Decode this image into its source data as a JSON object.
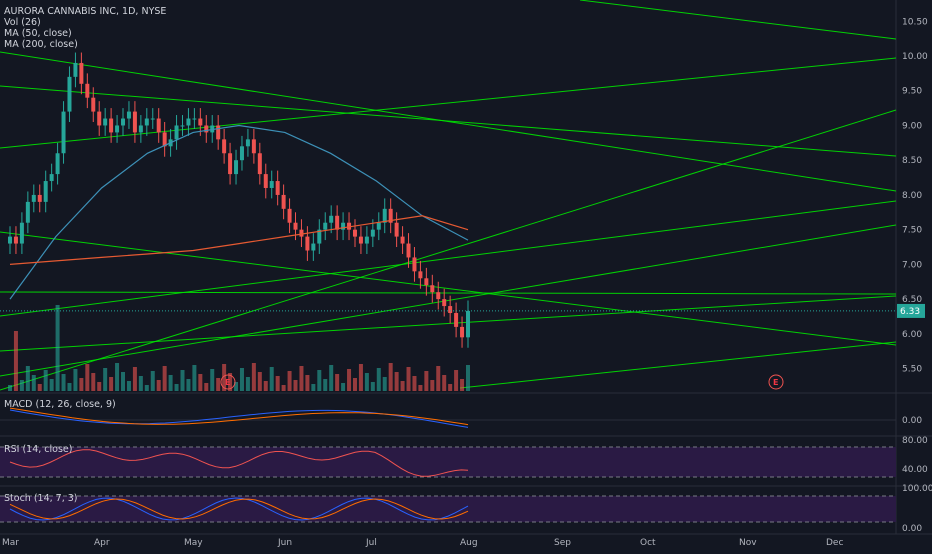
{
  "chart_data": {
    "type": "candlestick",
    "symbol_title": "AURORA CANNABIS INC, 1D, NYSE",
    "indicators": [
      "Vol (26)",
      "MA (50, close)",
      "MA (200, close)"
    ],
    "last_price": "6.33",
    "earnings_marker": "E",
    "colors": {
      "up": "#26a69a",
      "down": "#ef5350",
      "trendline": "#00e600",
      "ma50": "#3d91b8",
      "ma200": "#e65a32",
      "background": "#131722",
      "rsi_band": "#2a1a44"
    },
    "price_axis": {
      "ticks": [
        "10.50",
        "10.00",
        "9.50",
        "9.00",
        "8.50",
        "8.00",
        "7.50",
        "7.00",
        "6.50",
        "6.00",
        "5.50"
      ],
      "min": 5.35,
      "max": 10.72
    },
    "x_axis": {
      "ticks": [
        "Mar",
        "Apr",
        "May",
        "Jun",
        "Jul",
        "Aug",
        "Sep",
        "Oct",
        "Nov",
        "Dec"
      ]
    },
    "price_series": [
      {
        "t": "Mar",
        "v": 7.4
      },
      {
        "t": "mid-Mar",
        "v": 8.6
      },
      {
        "t": "Mar-high",
        "v": 9.9
      },
      {
        "t": "Apr",
        "v": 9.1
      },
      {
        "t": "mid-Apr",
        "v": 9.2
      },
      {
        "t": "May",
        "v": 8.9
      },
      {
        "t": "mid-May",
        "v": 8.3
      },
      {
        "t": "Jun",
        "v": 7.5
      },
      {
        "t": "mid-Jun",
        "v": 7.6
      },
      {
        "t": "Jul",
        "v": 7.5
      },
      {
        "t": "mid-Jul",
        "v": 6.7
      },
      {
        "t": "Aug",
        "v": 6.33
      }
    ],
    "ma50_series": [
      6.5,
      7.4,
      8.1,
      8.6,
      8.9,
      9.0,
      8.9,
      8.6,
      8.2,
      7.7,
      7.35
    ],
    "ma200_series": [
      7.0,
      7.05,
      7.1,
      7.15,
      7.2,
      7.3,
      7.4,
      7.5,
      7.6,
      7.7,
      7.5
    ],
    "panels": {
      "macd": {
        "label": "MACD (12, 26, close, 9)",
        "ticks": [
          "0.00"
        ]
      },
      "rsi": {
        "label": "RSI (14, close)",
        "ticks": [
          "80.00",
          "40.00"
        ]
      },
      "stoch": {
        "label": "Stoch (14, 7, 3)",
        "ticks": [
          "100.00",
          "0.00"
        ]
      }
    }
  }
}
